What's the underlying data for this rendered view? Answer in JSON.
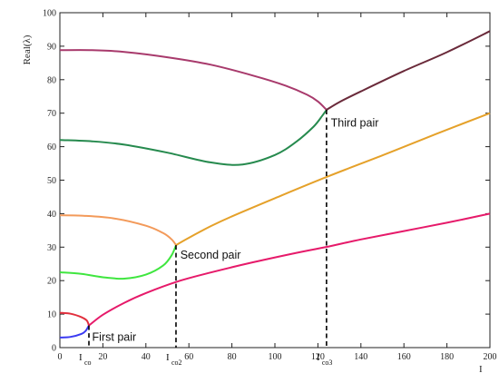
{
  "chart_data": {
    "type": "line",
    "title": "",
    "xlabel": "I",
    "ylabel": "Real(λ)",
    "xlim": [
      0,
      200
    ],
    "ylim": [
      0,
      100
    ],
    "xticks": [
      0,
      20,
      40,
      60,
      80,
      100,
      120,
      140,
      160,
      180,
      200
    ],
    "yticks": [
      0,
      10,
      20,
      30,
      40,
      50,
      60,
      70,
      80,
      90,
      100
    ],
    "grid": false,
    "series": [
      {
        "color": "#3b3bf2",
        "points": [
          [
            0,
            3
          ],
          [
            5,
            3.2
          ],
          [
            10,
            4.1
          ],
          [
            12,
            5
          ],
          [
            13.5,
            6.6
          ]
        ]
      },
      {
        "color": "#e2303e",
        "points": [
          [
            0,
            10.4
          ],
          [
            5,
            10.1
          ],
          [
            10,
            9.1
          ],
          [
            12.5,
            8.1
          ],
          [
            13.5,
            6.6
          ]
        ]
      },
      {
        "color": "#e61a6a",
        "points": [
          [
            13.5,
            6.6
          ],
          [
            20,
            9.8
          ],
          [
            30,
            13.4
          ],
          [
            40,
            16.3
          ],
          [
            55,
            19.8
          ],
          [
            70,
            22.4
          ],
          [
            90,
            25.5
          ],
          [
            110,
            28.3
          ],
          [
            125,
            30.2
          ],
          [
            140,
            32.3
          ],
          [
            160,
            34.8
          ],
          [
            180,
            37.3
          ],
          [
            200,
            40
          ]
        ]
      },
      {
        "color": "#3fe63f",
        "points": [
          [
            0,
            22.5
          ],
          [
            10,
            22
          ],
          [
            20,
            21
          ],
          [
            30,
            20.6
          ],
          [
            40,
            21.8
          ],
          [
            48,
            24.5
          ],
          [
            52,
            27.6
          ],
          [
            54,
            30.6
          ]
        ]
      },
      {
        "color": "#f39a5a",
        "points": [
          [
            0,
            39.5
          ],
          [
            10,
            39.4
          ],
          [
            25,
            38.6
          ],
          [
            40,
            36.4
          ],
          [
            48,
            34.2
          ],
          [
            52,
            32.3
          ],
          [
            54,
            30.6
          ]
        ]
      },
      {
        "color": "#e5a12a",
        "points": [
          [
            54,
            30.6
          ],
          [
            60,
            32.8
          ],
          [
            70,
            36.2
          ],
          [
            80,
            39.2
          ],
          [
            100,
            44.6
          ],
          [
            125,
            51.2
          ],
          [
            150,
            57.4
          ],
          [
            175,
            63.8
          ],
          [
            200,
            70
          ]
        ]
      },
      {
        "color": "#268a4e",
        "points": [
          [
            0,
            62
          ],
          [
            15,
            61.6
          ],
          [
            30,
            60.6
          ],
          [
            50,
            58.2
          ],
          [
            70,
            55.3
          ],
          [
            85,
            54.7
          ],
          [
            100,
            57.5
          ],
          [
            110,
            61.5
          ],
          [
            118,
            66
          ],
          [
            122,
            69.2
          ],
          [
            124,
            71
          ]
        ]
      },
      {
        "color": "#a83a6c",
        "points": [
          [
            0,
            88.8
          ],
          [
            15,
            88.8
          ],
          [
            30,
            88.3
          ],
          [
            50,
            86.7
          ],
          [
            70,
            84.5
          ],
          [
            90,
            81.2
          ],
          [
            105,
            78.2
          ],
          [
            115,
            75.5
          ],
          [
            120,
            73.5
          ],
          [
            124,
            71
          ]
        ]
      },
      {
        "color": "#6a2a3a",
        "points": [
          [
            124,
            71
          ],
          [
            130,
            73.3
          ],
          [
            140,
            76.5
          ],
          [
            160,
            82.6
          ],
          [
            180,
            88.2
          ],
          [
            200,
            94.5
          ]
        ]
      }
    ],
    "critical_lines": [
      {
        "x": 13.5,
        "y": 6.6
      },
      {
        "x": 54,
        "y": 30.6
      },
      {
        "x": 124,
        "y": 71
      }
    ],
    "annotations": [
      {
        "text": "First pair",
        "x": 15,
        "y": 2
      },
      {
        "text": "Second pair",
        "x": 56,
        "y": 26.5
      },
      {
        "text": "Third pair",
        "x": 126,
        "y": 66
      }
    ],
    "critical_labels": [
      {
        "main": "I",
        "sub": "co",
        "x": 13.5
      },
      {
        "main": "I",
        "sub": "co2",
        "x": 54
      },
      {
        "main": "I",
        "sub": "co3",
        "x": 124
      }
    ]
  }
}
